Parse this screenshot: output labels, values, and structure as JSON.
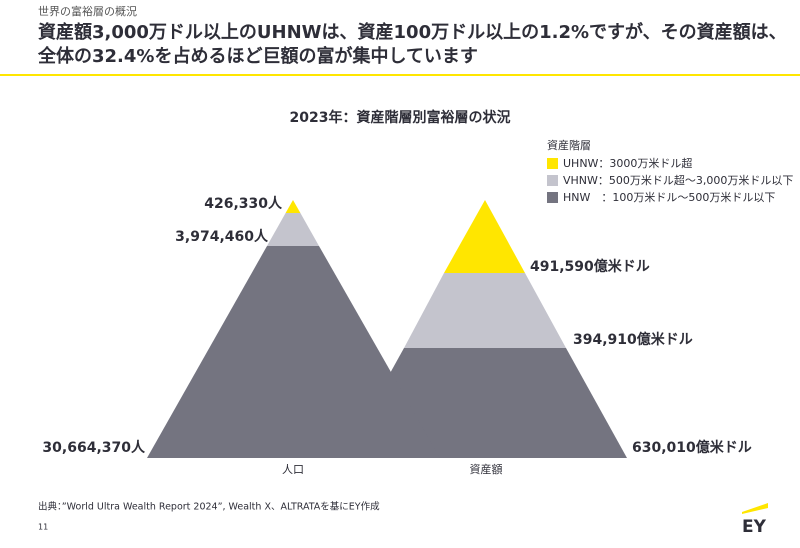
{
  "header": {
    "breadcrumb": "世界の富裕層の概況",
    "title_line1": "資産額3,000万ドル以上のUHNWは、資産100万ドル以上の1.2%ですが、その資産額は、",
    "title_line2": "全体の32.4%を占めるほど巨額の富が集中しています"
  },
  "chart": {
    "title": "2023年：資産階層別富裕層の状況",
    "legend_title": "資産階層",
    "legend": [
      "UHNW：3000万米ドル超",
      "VHNW：500万米ドル超～3,000万米ドル以下",
      "HNW　：100万米ドル～500万米ドル以下"
    ],
    "pyramids": [
      {
        "label": "人口",
        "segments": [
          "426,330人",
          "3,974,460人",
          "30,664,370人"
        ]
      },
      {
        "label": "資産額",
        "segments": [
          "491,590億米ドル",
          "394,910億米ドル",
          "630,010億米ドル"
        ]
      }
    ]
  },
  "footer": {
    "source": "出典：”World Ultra Wealth Report 2024”, Wealth X、ALTRATAを基にEY作成",
    "page": "11",
    "logo": "EY"
  }
}
